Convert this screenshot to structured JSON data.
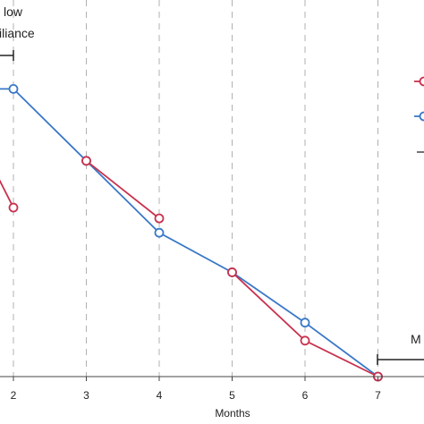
{
  "chart_data": {
    "type": "line",
    "xlabel": "Months",
    "x_ticks": [
      "2",
      "3",
      "4",
      "5",
      "6",
      "7"
    ],
    "xlim": [
      1.8,
      7.7
    ],
    "ylim": [
      0,
      1
    ],
    "grid": "vertical dashed at each month",
    "legend": "right (cropped)",
    "series": [
      {
        "color": "#c8324e",
        "segments": [
          [
            [
              1.8,
              0.55
            ],
            [
              2,
              0.47
            ]
          ],
          [
            [
              3,
              0.6
            ],
            [
              4,
              0.44
            ]
          ],
          [
            [
              5,
              0.29
            ],
            [
              6,
              0.1
            ],
            [
              7,
              0.0
            ]
          ]
        ]
      },
      {
        "color": "#3a78c8",
        "segments": [
          [
            [
              1.8,
              0.8
            ],
            [
              2,
              0.8
            ],
            [
              3,
              0.6
            ],
            [
              4,
              0.4
            ],
            [
              5,
              0.29
            ],
            [
              6,
              0.15
            ],
            [
              7,
              0.0
            ]
          ]
        ]
      }
    ],
    "annotations": [
      {
        "lines": [
          "low",
          "iliance"
        ]
      },
      {
        "lines": [
          "M"
        ]
      }
    ]
  }
}
